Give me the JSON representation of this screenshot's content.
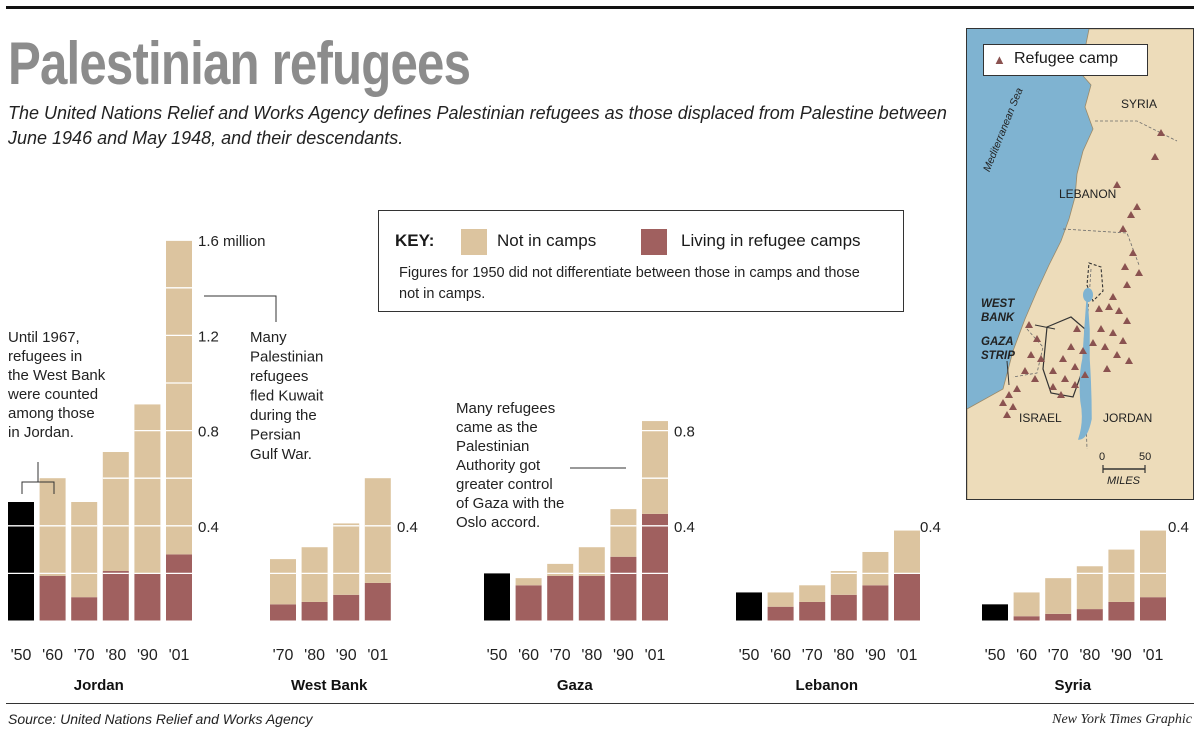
{
  "title": "Palestinian refugees",
  "subtitle": "The United Nations Relief and Works Agency defines Palestinian refugees as those displaced from Palestine between June 1946 and May 1948, and their descendants.",
  "key": {
    "label": "KEY:",
    "not_in_camps": "Not in camps",
    "in_camps": "Living in refugee camps",
    "note": "Figures for 1950 did not differentiate between those in camps and those not in camps."
  },
  "colors": {
    "not_in_camps": "#dcc49f",
    "in_camps": "#a0605f",
    "undifferentiated": "#000000",
    "water": "#7fb3d1",
    "land": "#eddcba",
    "camp": "#8a5250"
  },
  "chart_data": {
    "type": "bar",
    "stacked": true,
    "unit": "millions of refugees",
    "groups": [
      {
        "name": "Jordan",
        "categories": [
          "'50",
          "'60",
          "'70",
          "'80",
          "'90",
          "'01"
        ],
        "series": [
          {
            "name": "Total (1950, undifferentiated)",
            "values": [
              0.5,
              null,
              null,
              null,
              null,
              null
            ]
          },
          {
            "name": "Living in refugee camps",
            "values": [
              null,
              0.19,
              0.1,
              0.21,
              0.2,
              0.28
            ]
          },
          {
            "name": "Not in camps",
            "values": [
              null,
              0.41,
              0.4,
              0.5,
              0.71,
              1.32
            ]
          }
        ],
        "tick_labels": [
          "1.6 million",
          "1.2",
          "0.8",
          "0.4"
        ],
        "tick_values": [
          1.6,
          1.2,
          0.8,
          0.4
        ]
      },
      {
        "name": "West Bank",
        "categories": [
          "'70",
          "'80",
          "'90",
          "'01"
        ],
        "series": [
          {
            "name": "Living in refugee camps",
            "values": [
              0.07,
              0.08,
              0.11,
              0.16
            ]
          },
          {
            "name": "Not in camps",
            "values": [
              0.19,
              0.23,
              0.3,
              0.44
            ]
          }
        ],
        "tick_labels": [
          "0.4"
        ],
        "tick_values": [
          0.4
        ]
      },
      {
        "name": "Gaza",
        "categories": [
          "'50",
          "'60",
          "'70",
          "'80",
          "'90",
          "'01"
        ],
        "series": [
          {
            "name": "Total (1950, undifferentiated)",
            "values": [
              0.2,
              null,
              null,
              null,
              null,
              null
            ]
          },
          {
            "name": "Living in refugee camps",
            "values": [
              null,
              0.15,
              0.19,
              0.19,
              0.27,
              0.45
            ]
          },
          {
            "name": "Not in camps",
            "values": [
              null,
              0.03,
              0.05,
              0.12,
              0.2,
              0.39
            ]
          }
        ],
        "tick_labels": [
          "0.8",
          "0.4"
        ],
        "tick_values": [
          0.8,
          0.4
        ]
      },
      {
        "name": "Lebanon",
        "categories": [
          "'50",
          "'60",
          "'70",
          "'80",
          "'90",
          "'01"
        ],
        "series": [
          {
            "name": "Total (1950, undifferentiated)",
            "values": [
              0.12,
              null,
              null,
              null,
              null,
              null
            ]
          },
          {
            "name": "Living in refugee camps",
            "values": [
              null,
              0.06,
              0.08,
              0.11,
              0.15,
              0.2
            ]
          },
          {
            "name": "Not in camps",
            "values": [
              null,
              0.06,
              0.07,
              0.1,
              0.14,
              0.18
            ]
          }
        ],
        "tick_labels": [
          "0.4"
        ],
        "tick_values": [
          0.4
        ]
      },
      {
        "name": "Syria",
        "categories": [
          "'50",
          "'60",
          "'70",
          "'80",
          "'90",
          "'01"
        ],
        "series": [
          {
            "name": "Total (1950, undifferentiated)",
            "values": [
              0.07,
              null,
              null,
              null,
              null,
              null
            ]
          },
          {
            "name": "Living in refugee camps",
            "values": [
              null,
              0.02,
              0.03,
              0.05,
              0.08,
              0.1
            ]
          },
          {
            "name": "Not in camps",
            "values": [
              null,
              0.1,
              0.15,
              0.18,
              0.22,
              0.28
            ]
          }
        ],
        "tick_labels": [
          "0.4"
        ],
        "tick_values": [
          0.4
        ]
      }
    ]
  },
  "annotations": {
    "jordan_westbank": [
      "Until 1967,",
      "refugees in",
      "the West Bank",
      "were counted",
      "among those",
      "in Jordan."
    ],
    "kuwait": [
      "Many",
      "Palestinian",
      "refugees",
      "fled Kuwait",
      "during the",
      "Persian",
      "Gulf War."
    ],
    "gaza_oslo": [
      "Many refugees",
      "came as the",
      "Palestinian",
      "Authority got",
      "greater control",
      "of Gaza with the",
      "Oslo accord."
    ]
  },
  "map": {
    "legend": "Refugee camp",
    "labels": {
      "syria": "SYRIA",
      "lebanon": "LEBANON",
      "sea": "Mediterranean Sea",
      "west_bank": "WEST BANK",
      "gaza_strip": "GAZA STRIP",
      "israel": "ISRAEL",
      "jordan": "JORDAN",
      "scale_zero": "0",
      "scale_fifty": "50",
      "scale_unit": "MILES"
    }
  },
  "source": "Source: United Nations Relief and Works Agency",
  "credit": "New York Times Graphic"
}
